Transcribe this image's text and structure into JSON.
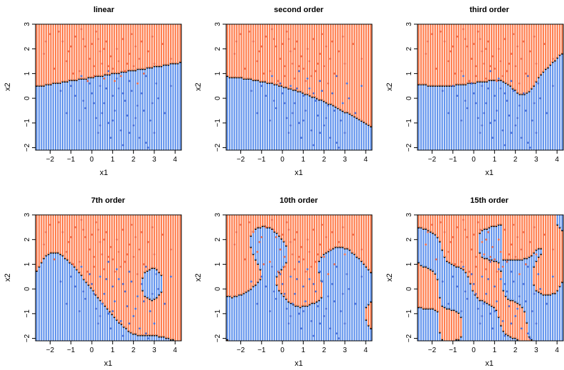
{
  "chart_data": [
    {
      "type": "scatter",
      "title": "linear",
      "xlabel": "x1",
      "ylabel": "x2",
      "xlim": [
        -2.7,
        4.3
      ],
      "ylim": [
        -2.1,
        3.0
      ],
      "xticks": [
        -2,
        -1,
        0,
        1,
        2,
        3,
        4
      ],
      "yticks": [
        -2,
        -1,
        0,
        1,
        2,
        3
      ],
      "boundary": "linear"
    },
    {
      "type": "scatter",
      "title": "second order",
      "xlabel": "x1",
      "ylabel": "x2",
      "xlim": [
        -2.7,
        4.3
      ],
      "ylim": [
        -2.1,
        3.0
      ],
      "xticks": [
        -2,
        -1,
        0,
        1,
        2,
        3,
        4
      ],
      "yticks": [
        -2,
        -1,
        0,
        1,
        2,
        3
      ],
      "boundary": "quadratic"
    },
    {
      "type": "scatter",
      "title": "third order",
      "xlabel": "x1",
      "ylabel": "x2",
      "xlim": [
        -2.7,
        4.3
      ],
      "ylim": [
        -2.1,
        3.0
      ],
      "xticks": [
        -2,
        -1,
        0,
        1,
        2,
        3,
        4
      ],
      "yticks": [
        -2,
        -1,
        0,
        1,
        2,
        3
      ],
      "boundary": "cubic"
    },
    {
      "type": "scatter",
      "title": "7th order",
      "xlabel": "x1",
      "ylabel": "x2",
      "xlim": [
        -2.7,
        4.3
      ],
      "ylim": [
        -2.1,
        3.0
      ],
      "xticks": [
        -2,
        -1,
        0,
        1,
        2,
        3,
        4
      ],
      "yticks": [
        -2,
        -1,
        0,
        1,
        2,
        3
      ],
      "boundary": "polynomial-7"
    },
    {
      "type": "scatter",
      "title": "10th order",
      "xlabel": "x1",
      "ylabel": "x2",
      "xlim": [
        -2.7,
        4.3
      ],
      "ylim": [
        -2.1,
        3.0
      ],
      "xticks": [
        -2,
        -1,
        0,
        1,
        2,
        3,
        4
      ],
      "yticks": [
        -2,
        -1,
        0,
        1,
        2,
        3
      ],
      "boundary": "polynomial-10"
    },
    {
      "type": "scatter",
      "title": "15th order",
      "xlabel": "x1",
      "ylabel": "x2",
      "xlim": [
        -2.7,
        4.3
      ],
      "ylim": [
        -2.1,
        3.0
      ],
      "xticks": [
        -2,
        -1,
        0,
        1,
        2,
        3,
        4
      ],
      "yticks": [
        -2,
        -1,
        0,
        1,
        2,
        3
      ],
      "boundary": "polynomial-15"
    }
  ],
  "colors": {
    "class_orange": "#ff7f50",
    "class_blue": "#6495ed",
    "points_orange": "#ee6a4a",
    "points_blue": "#4a6fd8",
    "edge": "#000000",
    "axis": "#000000"
  },
  "points": {
    "orange": [
      [
        -2.0,
        2.6
      ],
      [
        -1.4,
        2.3
      ],
      [
        -1.1,
        1.9
      ],
      [
        -0.8,
        2.5
      ],
      [
        -0.5,
        2.8
      ],
      [
        -0.3,
        2.1
      ],
      [
        -0.1,
        1.6
      ],
      [
        0.0,
        2.2
      ],
      [
        0.2,
        2.7
      ],
      [
        0.4,
        1.9
      ],
      [
        0.5,
        1.4
      ],
      [
        0.7,
        2.3
      ],
      [
        0.9,
        1.7
      ],
      [
        1.0,
        1.2
      ],
      [
        1.2,
        2.0
      ],
      [
        1.3,
        1.5
      ],
      [
        1.5,
        2.4
      ],
      [
        1.6,
        1.1
      ],
      [
        1.8,
        1.8
      ],
      [
        2.0,
        1.3
      ],
      [
        2.1,
        2.1
      ],
      [
        2.3,
        1.6
      ],
      [
        2.5,
        1.0
      ],
      [
        2.7,
        1.9
      ],
      [
        3.0,
        1.4
      ],
      [
        3.4,
        2.2
      ],
      [
        -1.8,
        1.2
      ],
      [
        -1.2,
        1.5
      ],
      [
        -0.6,
        1.1
      ],
      [
        0.1,
        0.9
      ],
      [
        0.6,
        0.8
      ],
      [
        1.1,
        0.7
      ],
      [
        -2.3,
        1.8
      ],
      [
        -1.6,
        2.7
      ],
      [
        0.3,
        2.4
      ],
      [
        1.9,
        2.6
      ],
      [
        2.9,
        2.5
      ],
      [
        3.8,
        1.6
      ],
      [
        0.8,
        1.3
      ],
      [
        1.4,
        0.9
      ],
      [
        -0.9,
        1.0
      ],
      [
        2.2,
        0.6
      ],
      [
        -0.2,
        0.7
      ],
      [
        -2.2,
        2.3
      ],
      [
        -0.4,
        2.4
      ],
      [
        0.6,
        2.0
      ],
      [
        1.7,
        1.4
      ],
      [
        2.4,
        2.3
      ],
      [
        -1.0,
        2.1
      ],
      [
        0.1,
        1.3
      ]
    ],
    "blue": [
      [
        -1.5,
        0.3
      ],
      [
        -0.8,
        0.1
      ],
      [
        -0.3,
        -0.4
      ],
      [
        0.0,
        0.2
      ],
      [
        0.2,
        -0.8
      ],
      [
        0.4,
        0.5
      ],
      [
        0.6,
        -0.2
      ],
      [
        0.8,
        -1.0
      ],
      [
        1.0,
        0.1
      ],
      [
        1.1,
        -0.5
      ],
      [
        1.3,
        0.4
      ],
      [
        1.4,
        -1.3
      ],
      [
        1.6,
        -0.1
      ],
      [
        1.7,
        -0.7
      ],
      [
        1.9,
        0.3
      ],
      [
        2.0,
        -1.1
      ],
      [
        2.2,
        -0.3
      ],
      [
        2.3,
        -1.6
      ],
      [
        2.5,
        -0.5
      ],
      [
        2.6,
        -1.8
      ],
      [
        2.8,
        -0.9
      ],
      [
        3.0,
        -1.4
      ],
      [
        3.2,
        0.0
      ],
      [
        3.5,
        -0.6
      ],
      [
        -1.2,
        -0.6
      ],
      [
        -0.6,
        -0.9
      ],
      [
        0.3,
        -1.4
      ],
      [
        0.9,
        -1.6
      ],
      [
        1.5,
        -1.9
      ],
      [
        2.7,
        -2.0
      ],
      [
        -0.1,
        0.6
      ],
      [
        0.7,
        0.4
      ],
      [
        1.2,
        0.8
      ],
      [
        1.8,
        0.7
      ],
      [
        2.4,
        0.2
      ],
      [
        3.8,
        0.5
      ],
      [
        -0.4,
        -0.1
      ],
      [
        0.5,
        -0.6
      ],
      [
        1.0,
        -0.9
      ],
      [
        2.1,
        -0.8
      ],
      [
        -1.0,
        0.5
      ],
      [
        0.1,
        -0.2
      ],
      [
        1.5,
        0.2
      ],
      [
        2.9,
        -0.2
      ],
      [
        0.4,
        -1.1
      ],
      [
        1.8,
        -1.4
      ],
      [
        -0.5,
        0.9
      ],
      [
        3.1,
        0.6
      ],
      [
        0.8,
        1.1
      ],
      [
        2.6,
        0.9
      ]
    ]
  }
}
